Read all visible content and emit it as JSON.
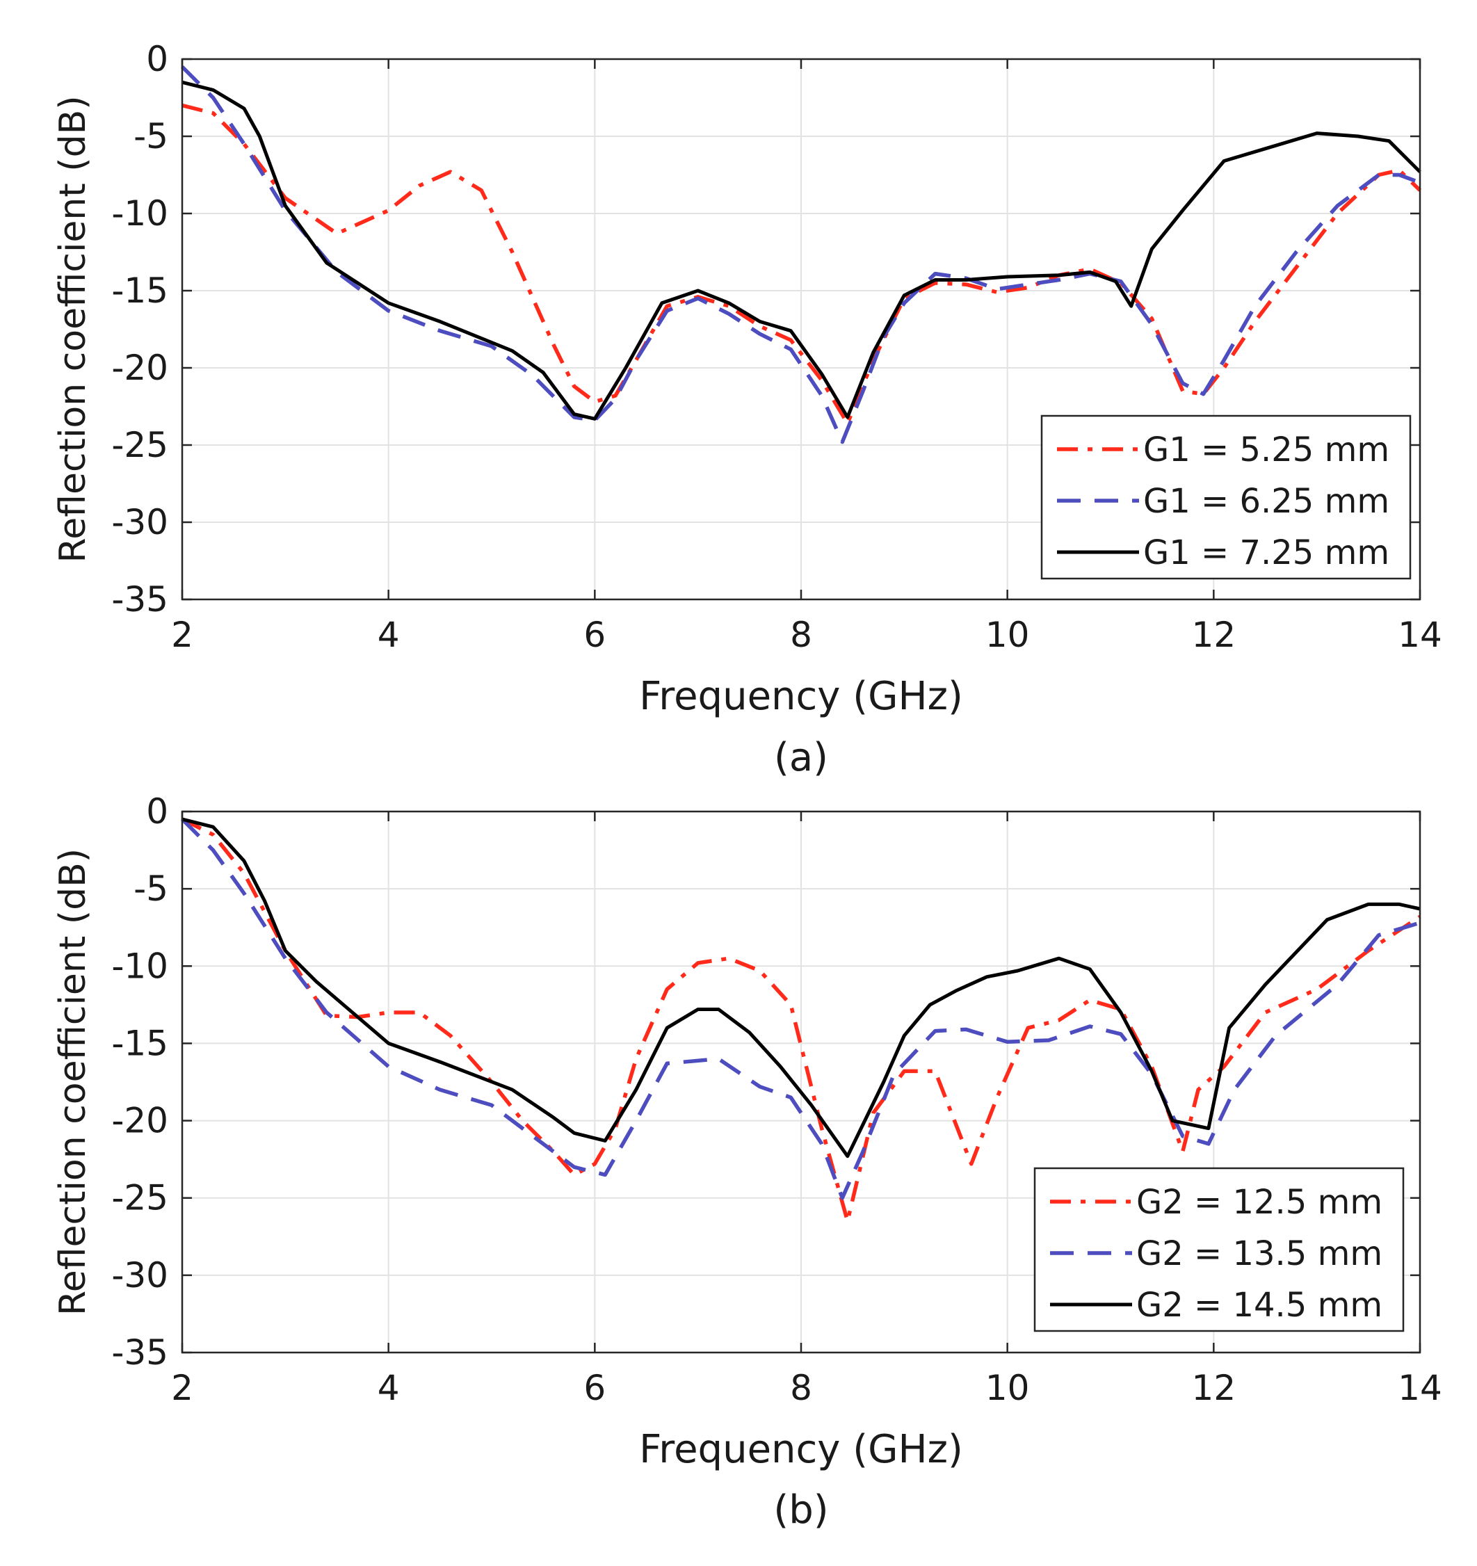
{
  "chart_data": [
    {
      "type": "line",
      "panel_label": "(a)",
      "xlabel": "Frequency (GHz)",
      "ylabel": "Reflection coefficient (dB)",
      "xlim": [
        2,
        14
      ],
      "ylim": [
        -35,
        0
      ],
      "xticks": [
        2,
        4,
        6,
        8,
        10,
        12,
        14
      ],
      "yticks": [
        0,
        -5,
        -10,
        -15,
        -20,
        -25,
        -30,
        -35
      ],
      "grid": true,
      "legend_position": "lower-right",
      "series": [
        {
          "name": "G1 = 5.25 mm",
          "style": "dashdot",
          "color": "#ff2a1a",
          "x": [
            2.0,
            2.3,
            2.6,
            3.0,
            3.5,
            4.0,
            4.3,
            4.6,
            4.9,
            5.2,
            5.6,
            5.8,
            6.0,
            6.2,
            6.4,
            6.7,
            7.0,
            7.3,
            7.6,
            7.9,
            8.2,
            8.45,
            8.7,
            9.0,
            9.3,
            9.6,
            9.9,
            10.2,
            10.5,
            10.8,
            11.1,
            11.4,
            11.7,
            11.9,
            12.1,
            12.4,
            12.8,
            13.2,
            13.6,
            13.8,
            14.0
          ],
          "y": [
            -3.0,
            -3.5,
            -5.5,
            -9.0,
            -11.3,
            -9.8,
            -8.2,
            -7.3,
            -8.5,
            -12.5,
            -18.5,
            -21.2,
            -22.2,
            -21.8,
            -19.5,
            -16.0,
            -15.4,
            -16.0,
            -17.3,
            -18.2,
            -20.8,
            -23.6,
            -19.5,
            -15.5,
            -14.5,
            -14.6,
            -15.1,
            -14.8,
            -14.0,
            -13.6,
            -14.5,
            -16.8,
            -21.5,
            -21.7,
            -20.0,
            -17.0,
            -13.5,
            -10.0,
            -7.5,
            -7.2,
            -8.5
          ]
        },
        {
          "name": "G1 = 6.25 mm",
          "style": "dashed",
          "color": "#4d4dbf",
          "x": [
            2.0,
            2.3,
            2.6,
            3.0,
            3.5,
            4.0,
            4.5,
            5.0,
            5.4,
            5.8,
            6.0,
            6.2,
            6.4,
            6.7,
            7.0,
            7.3,
            7.6,
            7.9,
            8.2,
            8.4,
            8.6,
            8.8,
            9.0,
            9.3,
            9.6,
            9.9,
            10.2,
            10.5,
            10.8,
            11.1,
            11.4,
            11.7,
            11.9,
            12.1,
            12.4,
            12.8,
            13.2,
            13.6,
            13.8,
            14.0
          ],
          "y": [
            -0.5,
            -2.5,
            -5.5,
            -9.8,
            -13.8,
            -16.3,
            -17.6,
            -18.6,
            -20.5,
            -23.2,
            -23.4,
            -22.0,
            -19.5,
            -16.3,
            -15.5,
            -16.5,
            -17.8,
            -18.8,
            -21.8,
            -24.8,
            -21.5,
            -18.0,
            -15.8,
            -13.9,
            -14.2,
            -14.9,
            -14.6,
            -14.3,
            -13.9,
            -14.4,
            -17.2,
            -21.0,
            -21.7,
            -19.5,
            -16.0,
            -12.5,
            -9.5,
            -7.5,
            -7.5,
            -8.0
          ]
        },
        {
          "name": "G1 = 7.25 mm",
          "style": "solid",
          "color": "#000000",
          "x": [
            2.0,
            2.3,
            2.6,
            2.75,
            3.0,
            3.4,
            3.7,
            4.0,
            4.5,
            5.2,
            5.5,
            5.8,
            6.0,
            6.3,
            6.65,
            7.0,
            7.3,
            7.6,
            7.9,
            8.2,
            8.45,
            8.7,
            9.0,
            9.3,
            9.6,
            10.0,
            10.5,
            10.8,
            11.05,
            11.2,
            11.4,
            11.7,
            12.1,
            12.5,
            13.0,
            13.4,
            13.7,
            14.0
          ],
          "y": [
            -1.5,
            -2.0,
            -3.2,
            -5.0,
            -9.5,
            -13.2,
            -14.5,
            -15.8,
            -17.0,
            -18.9,
            -20.3,
            -23.0,
            -23.3,
            -20.0,
            -15.8,
            -15.0,
            -15.8,
            -17.0,
            -17.6,
            -20.4,
            -23.2,
            -19.0,
            -15.3,
            -14.3,
            -14.3,
            -14.1,
            -14.0,
            -13.8,
            -14.4,
            -16.0,
            -12.3,
            -9.8,
            -6.6,
            -5.8,
            -4.8,
            -5.0,
            -5.3,
            -7.3
          ]
        }
      ]
    },
    {
      "type": "line",
      "panel_label": "(b)",
      "xlabel": "Frequency (GHz)",
      "ylabel": "Reflection coefficient (dB)",
      "xlim": [
        2,
        14
      ],
      "ylim": [
        -35,
        0
      ],
      "xticks": [
        2,
        4,
        6,
        8,
        10,
        12,
        14
      ],
      "yticks": [
        0,
        -5,
        -10,
        -15,
        -20,
        -25,
        -30,
        -35
      ],
      "grid": true,
      "legend_position": "lower-right",
      "series": [
        {
          "name": "G2 = 12.5 mm",
          "style": "dashdot",
          "color": "#ff2a1a",
          "x": [
            2.0,
            2.3,
            2.6,
            3.0,
            3.4,
            3.7,
            4.0,
            4.3,
            4.6,
            5.0,
            5.3,
            5.6,
            5.8,
            6.0,
            6.2,
            6.4,
            6.7,
            7.0,
            7.3,
            7.6,
            7.9,
            8.2,
            8.45,
            8.7,
            9.0,
            9.3,
            9.65,
            9.9,
            10.2,
            10.5,
            10.8,
            11.1,
            11.4,
            11.7,
            11.85,
            12.1,
            12.5,
            13.0,
            13.5,
            14.0
          ],
          "y": [
            -0.5,
            -1.5,
            -4.0,
            -9.0,
            -13.2,
            -13.3,
            -13.0,
            -13.0,
            -14.5,
            -17.5,
            -20.0,
            -22.0,
            -23.5,
            -22.8,
            -20.5,
            -16.0,
            -11.5,
            -9.8,
            -9.5,
            -10.3,
            -12.5,
            -20.5,
            -26.5,
            -19.5,
            -16.8,
            -16.8,
            -22.8,
            -18.5,
            -14.0,
            -13.5,
            -12.2,
            -12.8,
            -16.5,
            -22.0,
            -18.0,
            -16.5,
            -13.0,
            -11.5,
            -9.0,
            -6.8
          ]
        },
        {
          "name": "G2 = 13.5 mm",
          "style": "dashed",
          "color": "#4d4dbf",
          "x": [
            2.0,
            2.3,
            2.6,
            3.0,
            3.4,
            4.0,
            4.5,
            5.0,
            5.4,
            5.8,
            6.1,
            6.4,
            6.7,
            7.2,
            7.6,
            7.9,
            8.2,
            8.4,
            8.6,
            8.9,
            9.3,
            9.6,
            10.0,
            10.4,
            10.8,
            11.1,
            11.4,
            11.7,
            11.95,
            12.2,
            12.6,
            13.2,
            13.6,
            14.0
          ],
          "y": [
            -0.5,
            -2.5,
            -5.3,
            -9.5,
            -13.0,
            -16.5,
            -18.0,
            -19.0,
            -21.0,
            -23.0,
            -23.5,
            -20.0,
            -16.3,
            -16.0,
            -17.8,
            -18.5,
            -21.5,
            -25.0,
            -22.0,
            -17.0,
            -14.2,
            -14.1,
            -14.9,
            -14.8,
            -13.9,
            -14.4,
            -17.0,
            -21.0,
            -21.5,
            -18.0,
            -14.5,
            -11.2,
            -8.0,
            -7.2
          ]
        },
        {
          "name": "G2 = 14.5 mm",
          "style": "solid",
          "color": "#000000",
          "x": [
            2.0,
            2.3,
            2.6,
            2.8,
            3.0,
            3.3,
            4.0,
            4.5,
            5.2,
            5.6,
            5.8,
            6.1,
            6.4,
            6.7,
            7.0,
            7.2,
            7.5,
            7.8,
            8.1,
            8.45,
            8.8,
            9.0,
            9.25,
            9.5,
            9.8,
            10.1,
            10.5,
            10.8,
            11.1,
            11.4,
            11.6,
            11.95,
            12.15,
            12.5,
            13.1,
            13.5,
            13.8,
            14.0
          ],
          "y": [
            -0.5,
            -1.0,
            -3.2,
            -5.8,
            -9.0,
            -11.0,
            -15.0,
            -16.2,
            -18.0,
            -19.8,
            -20.8,
            -21.3,
            -18.0,
            -14.0,
            -12.8,
            -12.8,
            -14.3,
            -16.5,
            -19.0,
            -22.3,
            -17.5,
            -14.5,
            -12.5,
            -11.6,
            -10.7,
            -10.3,
            -9.5,
            -10.2,
            -13.0,
            -16.8,
            -20.0,
            -20.5,
            -14.0,
            -11.2,
            -7.0,
            -6.0,
            -6.0,
            -6.3
          ]
        }
      ]
    }
  ]
}
